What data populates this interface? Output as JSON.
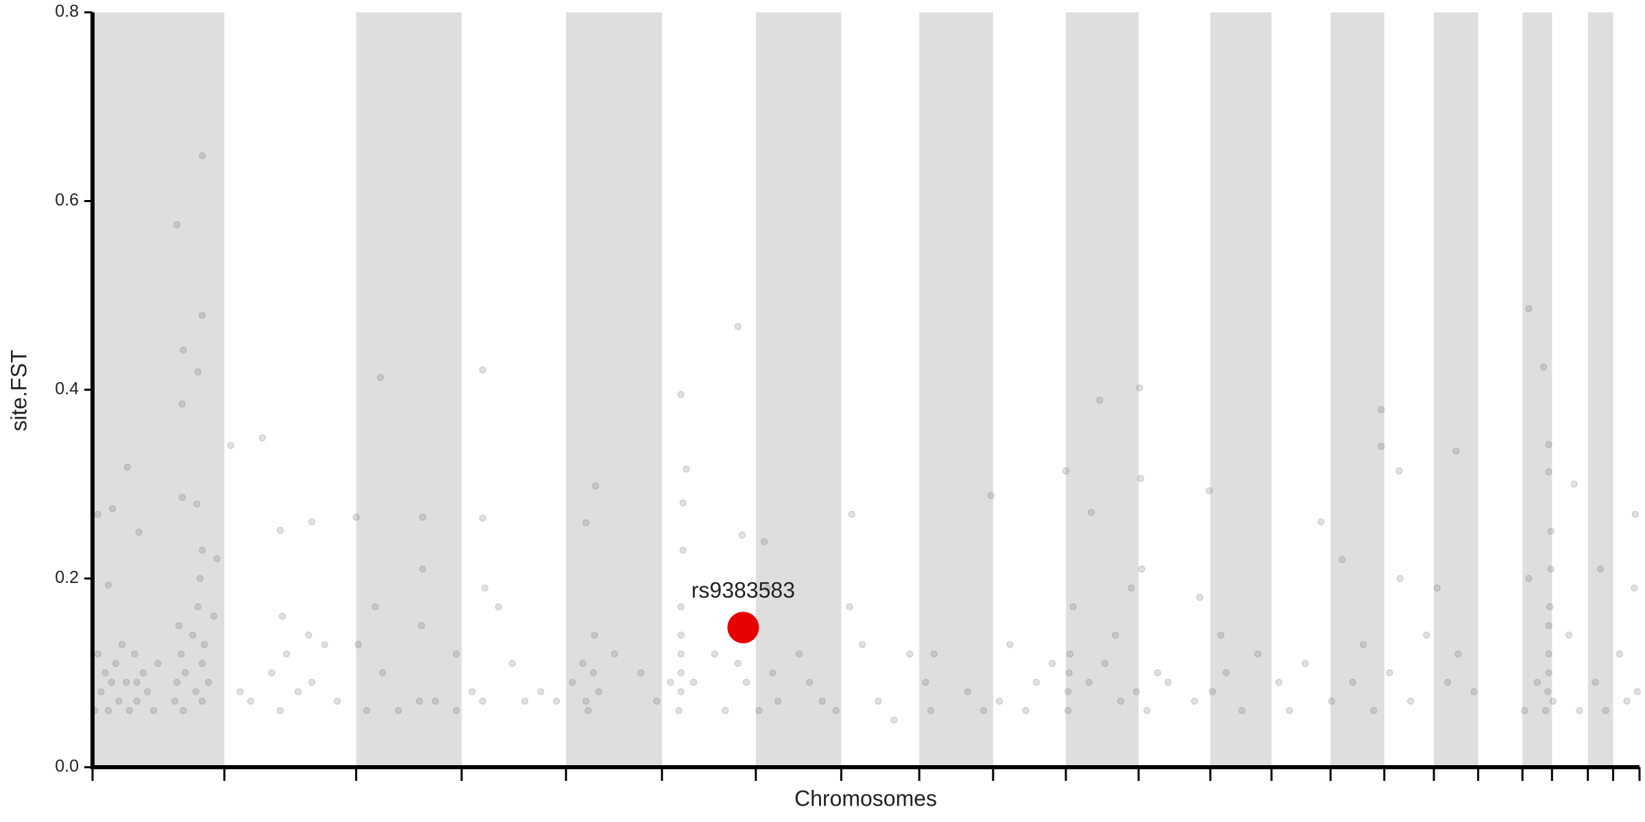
{
  "chart_data": {
    "type": "scatter",
    "xlabel": "Chromosomes",
    "ylabel": "site.FST",
    "xlim": [
      0,
      1467
    ],
    "xticks": [
      0,
      125,
      250,
      350,
      449,
      540,
      629,
      710,
      784,
      854,
      923,
      992,
      1060,
      1118,
      1174,
      1225,
      1272,
      1314,
      1356,
      1384,
      1418,
      1442,
      1467
    ],
    "band_color": "#dedede",
    "ylim": [
      0,
      0.8
    ],
    "yticks": [
      {
        "value": 0,
        "label": "0.0"
      },
      0.2,
      0.4,
      0.6,
      0.8
    ],
    "color": "#666666",
    "x": [
      80,
      104,
      104,
      86,
      100,
      85,
      33,
      85,
      99,
      5,
      19,
      131,
      161,
      178,
      273,
      370,
      313,
      250,
      612,
      558,
      563,
      477,
      955,
      993,
      1362,
      1376,
      1222,
      1222,
      1239,
      1293,
      1405,
      1463,
      852,
      923,
      947,
      994,
      1059,
      1381,
      1381,
      720,
      637,
      616,
      468,
      370,
      208,
      118,
      44,
      15,
      2,
      5,
      8,
      12,
      15,
      18,
      22,
      25,
      28,
      32,
      35,
      40,
      42,
      42,
      48,
      52,
      58,
      62,
      78,
      80,
      82,
      84,
      86,
      88,
      95,
      98,
      100,
      102,
      104,
      104,
      104,
      106,
      110,
      115,
      140,
      150,
      170,
      178,
      180,
      184,
      195,
      205,
      208,
      220,
      232,
      252,
      260,
      268,
      275,
      290,
      310,
      312,
      313,
      325,
      345,
      345,
      360,
      370,
      372,
      385,
      398,
      410,
      425,
      440,
      455,
      465,
      468,
      470,
      475,
      476,
      480,
      495,
      520,
      535,
      548,
      556,
      558,
      558,
      558,
      558,
      558,
      560,
      560,
      570,
      590,
      600,
      612,
      620,
      632,
      640,
      645,
      650,
      670,
      680,
      692,
      705,
      718,
      730,
      745,
      760,
      775,
      790,
      795,
      798,
      830,
      845,
      860,
      870,
      885,
      895,
      910,
      925,
      925,
      926,
      927,
      930,
      945,
      960,
      970,
      975,
      985,
      990,
      995,
      1000,
      1010,
      1020,
      1045,
      1050,
      1062,
      1070,
      1075,
      1090,
      1105,
      1125,
      1135,
      1150,
      1165,
      1175,
      1185,
      1195,
      1205,
      1215,
      1230,
      1240,
      1250,
      1265,
      1275,
      1285,
      1295,
      1310,
      1358,
      1362,
      1370,
      1378,
      1380,
      1381,
      1381,
      1381,
      1382,
      1383,
      1383,
      1385,
      1400,
      1410,
      1425,
      1430,
      1435,
      1448,
      1455,
      1462,
      1465
    ],
    "values": [
      0.575,
      0.648,
      0.479,
      0.442,
      0.419,
      0.385,
      0.318,
      0.286,
      0.279,
      0.268,
      0.274,
      0.341,
      0.349,
      0.251,
      0.413,
      0.421,
      0.265,
      0.265,
      0.467,
      0.395,
      0.316,
      0.298,
      0.389,
      0.402,
      0.486,
      0.424,
      0.379,
      0.34,
      0.314,
      0.335,
      0.3,
      0.268,
      0.288,
      0.314,
      0.27,
      0.306,
      0.293,
      0.342,
      0.313,
      0.268,
      0.239,
      0.246,
      0.259,
      0.264,
      0.26,
      0.221,
      0.249,
      0.193,
      0.06,
      0.12,
      0.08,
      0.1,
      0.06,
      0.09,
      0.11,
      0.07,
      0.13,
      0.09,
      0.06,
      0.12,
      0.07,
      0.09,
      0.1,
      0.08,
      0.06,
      0.11,
      0.07,
      0.09,
      0.15,
      0.12,
      0.06,
      0.1,
      0.14,
      0.08,
      0.17,
      0.2,
      0.07,
      0.11,
      0.23,
      0.13,
      0.09,
      0.16,
      0.08,
      0.07,
      0.1,
      0.06,
      0.16,
      0.12,
      0.08,
      0.14,
      0.09,
      0.13,
      0.07,
      0.13,
      0.06,
      0.17,
      0.1,
      0.06,
      0.07,
      0.15,
      0.21,
      0.07,
      0.12,
      0.06,
      0.08,
      0.07,
      0.19,
      0.17,
      0.11,
      0.07,
      0.08,
      0.07,
      0.09,
      0.11,
      0.07,
      0.06,
      0.1,
      0.14,
      0.08,
      0.12,
      0.1,
      0.07,
      0.09,
      0.06,
      0.08,
      0.1,
      0.12,
      0.14,
      0.17,
      0.28,
      0.23,
      0.09,
      0.12,
      0.06,
      0.11,
      0.09,
      0.06,
      0.19,
      0.1,
      0.07,
      0.12,
      0.09,
      0.07,
      0.06,
      0.17,
      0.13,
      0.07,
      0.05,
      0.12,
      0.09,
      0.06,
      0.12,
      0.08,
      0.06,
      0.07,
      0.13,
      0.06,
      0.09,
      0.11,
      0.06,
      0.08,
      0.1,
      0.12,
      0.17,
      0.09,
      0.11,
      0.14,
      0.07,
      0.19,
      0.08,
      0.21,
      0.06,
      0.1,
      0.09,
      0.07,
      0.18,
      0.08,
      0.14,
      0.1,
      0.06,
      0.12,
      0.09,
      0.06,
      0.11,
      0.26,
      0.07,
      0.22,
      0.09,
      0.13,
      0.06,
      0.1,
      0.2,
      0.07,
      0.14,
      0.19,
      0.09,
      0.12,
      0.08,
      0.06,
      0.2,
      0.09,
      0.06,
      0.08,
      0.1,
      0.12,
      0.15,
      0.17,
      0.21,
      0.25,
      0.07,
      0.14,
      0.06,
      0.09,
      0.21,
      0.06,
      0.12,
      0.07,
      0.19,
      0.08
    ],
    "annotations": [
      {
        "text": "rs9383583",
        "x": 617,
        "y": 0.148,
        "color": "#e60000"
      }
    ]
  }
}
